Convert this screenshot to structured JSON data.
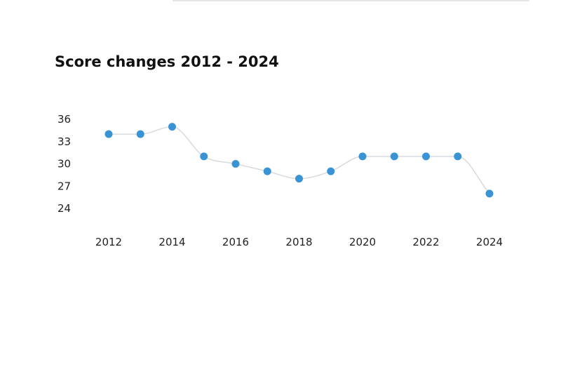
{
  "chart_data": {
    "type": "line",
    "title": "Score changes 2012 - 2024",
    "xlabel": "",
    "ylabel": "",
    "x": [
      2012,
      2013,
      2014,
      2015,
      2016,
      2017,
      2018,
      2019,
      2020,
      2021,
      2022,
      2023,
      2024
    ],
    "x_ticks": [
      "2012",
      "2014",
      "2016",
      "2018",
      "2020",
      "2022",
      "2024"
    ],
    "y_ticks": [
      "36",
      "33",
      "30",
      "27",
      "24"
    ],
    "ylim": [
      24,
      36
    ],
    "grid": false,
    "series": [
      {
        "values": [
          34,
          34,
          35,
          31,
          30,
          29,
          28,
          29,
          31,
          31,
          31,
          31,
          26
        ]
      }
    ],
    "colors": {
      "point": "#3a93d4",
      "line": "#d9dde0",
      "text": "#222222"
    }
  }
}
